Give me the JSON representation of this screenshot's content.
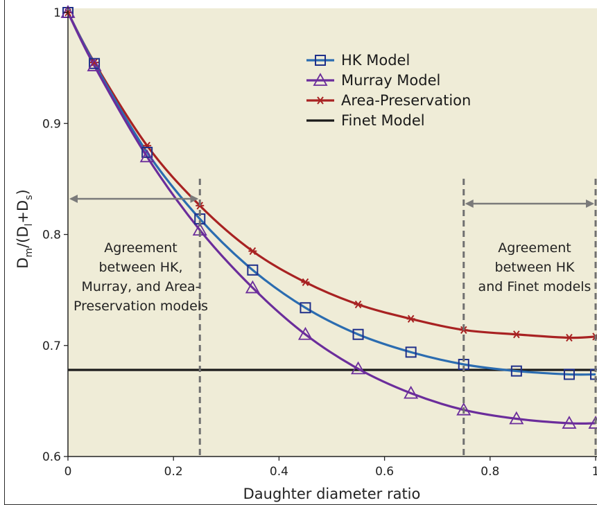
{
  "chart_data": {
    "type": "line",
    "xlabel": "Daughter diameter ratio",
    "ylabel_parts": [
      "D",
      "m",
      "/(D",
      "l",
      "+D",
      "s",
      ")"
    ],
    "xlim": [
      0,
      1
    ],
    "ylim": [
      0.6,
      1
    ],
    "xticks": [
      0,
      0.2,
      0.4,
      0.6,
      0.8,
      1
    ],
    "xtick_labels": [
      "0",
      "0.2",
      "0.4",
      "0.6",
      "0.8",
      "1"
    ],
    "yticks": [
      0.6,
      0.7,
      0.8,
      0.9,
      1
    ],
    "ytick_labels": [
      "0.6",
      "0.7",
      "0.8",
      "0.9",
      "1"
    ],
    "background": "#efecd7",
    "legend_position": "top-center",
    "series": [
      {
        "name": "HK Model",
        "color": "#2b6cb0",
        "marker_color": "#1f2f8a",
        "marker": "square",
        "x": [
          0,
          0.05,
          0.15,
          0.25,
          0.35,
          0.45,
          0.55,
          0.65,
          0.75,
          0.85,
          0.95,
          1.0
        ],
        "y": [
          1.0,
          0.954,
          0.874,
          0.814,
          0.768,
          0.734,
          0.71,
          0.694,
          0.683,
          0.677,
          0.674,
          0.674
        ]
      },
      {
        "name": "Murray Model",
        "color": "#6b2d9b",
        "marker_color": "#6b2d9b",
        "marker": "triangle",
        "x": [
          0,
          0.05,
          0.15,
          0.25,
          0.35,
          0.45,
          0.55,
          0.65,
          0.75,
          0.85,
          0.95,
          1.0
        ],
        "y": [
          1.0,
          0.952,
          0.87,
          0.804,
          0.752,
          0.71,
          0.679,
          0.657,
          0.642,
          0.634,
          0.63,
          0.63
        ]
      },
      {
        "name": "Area-Preservation",
        "color": "#a82222",
        "marker_color": "#a82222",
        "marker": "asterisk",
        "x": [
          0,
          0.05,
          0.15,
          0.25,
          0.35,
          0.45,
          0.55,
          0.65,
          0.75,
          0.85,
          0.95,
          1.0
        ],
        "y": [
          1.0,
          0.955,
          0.88,
          0.826,
          0.785,
          0.757,
          0.737,
          0.724,
          0.714,
          0.71,
          0.707,
          0.708
        ]
      },
      {
        "name": "Finet Model",
        "color": "#1a1a1a",
        "marker": "none",
        "x": [
          0,
          1.0
        ],
        "y": [
          0.678,
          0.678
        ]
      }
    ],
    "annotations": [
      {
        "lines": [
          "Agreement",
          "between HK,",
          "Murray, and Area-",
          "Preservation models"
        ]
      },
      {
        "lines": [
          "Agreement",
          "between HK",
          "and Finet models"
        ]
      }
    ],
    "vlines_x": [
      0.25,
      0.75,
      1.0
    ],
    "ranges": [
      {
        "from": 0,
        "to": 0.25
      },
      {
        "from": 0.75,
        "to": 1.0
      }
    ]
  }
}
